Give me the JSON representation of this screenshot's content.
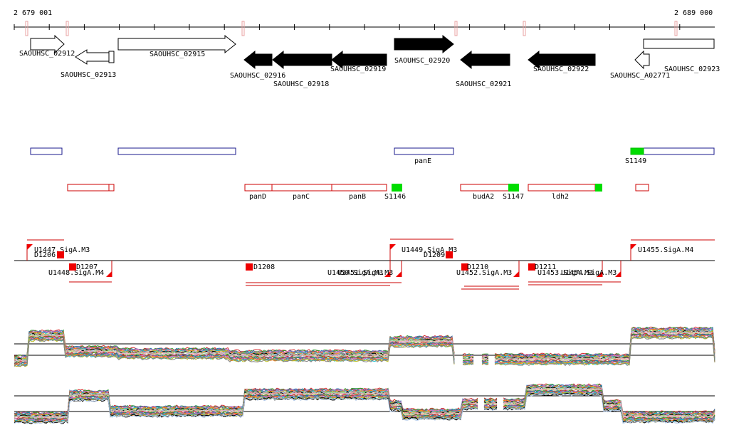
{
  "coords": {
    "start_label": "2 679 001",
    "end_label": "2 689 000"
  },
  "genes": [
    {
      "label": "SAOUHSC_02912",
      "filled": false,
      "dir": "+"
    },
    {
      "label": "SAOUHSC_02913",
      "filled": false,
      "dir": "-"
    },
    {
      "label": "SAOUHSC_02915",
      "filled": false,
      "dir": "+"
    },
    {
      "label": "SAOUHSC_02916",
      "filled": true,
      "dir": "-"
    },
    {
      "label": "SAOUHSC_02918",
      "filled": true,
      "dir": "-"
    },
    {
      "label": "SAOUHSC_02919",
      "filled": true,
      "dir": "-"
    },
    {
      "label": "SAOUHSC_02920",
      "filled": true,
      "dir": "+"
    },
    {
      "label": "SAOUHSC_02921",
      "filled": true,
      "dir": "-"
    },
    {
      "label": "SAOUHSC_02922",
      "filled": true,
      "dir": "-"
    },
    {
      "label": "SAOUHSC_A02771",
      "filled": false,
      "dir": "-"
    },
    {
      "label": "SAOUHSC_02923",
      "filled": false,
      "dir": "+"
    }
  ],
  "forward_features": [
    {
      "label": ""
    },
    {
      "label": ""
    },
    {
      "label": "panE"
    },
    {
      "label": ""
    }
  ],
  "forward_sites": [
    {
      "label": "S1149"
    }
  ],
  "reverse_features": [
    {
      "label": ""
    },
    {
      "label": ""
    },
    {
      "label": "panD"
    },
    {
      "label": "panC"
    },
    {
      "label": "panB"
    },
    {
      "label": "budA2"
    },
    {
      "label": "ldh2"
    },
    {
      "label": ""
    }
  ],
  "reverse_sites": [
    {
      "label": "S1146"
    },
    {
      "label": "S1147"
    },
    {
      "label": ""
    }
  ],
  "upper_promoters": [
    {
      "label": "U1447.SigA.M3"
    },
    {
      "label": "U1449.SigA.M3"
    },
    {
      "label": "U1455.SigA.M4"
    }
  ],
  "upper_d_markers": [
    {
      "label": "D1206"
    },
    {
      "label": "D1209"
    }
  ],
  "lower_promoters": [
    {
      "label": "U1448.SigA.M4"
    },
    {
      "label": "U1450.SigA.M3"
    },
    {
      "label": "U1451.SigA.M3"
    },
    {
      "label": "U1452.SigA.M3"
    },
    {
      "label": "U1453.SigA.M3"
    },
    {
      "label": "U1454.SigA.M3"
    }
  ],
  "lower_d_markers": [
    {
      "label": "D1207"
    },
    {
      "label": "D1208"
    },
    {
      "label": "D1210"
    },
    {
      "label": "D1211"
    }
  ],
  "colors": {
    "forward_outline": "#1a1a8c",
    "reverse_outline": "#cc0000",
    "site_green": "#00dd00",
    "marker_red": "#ee0000",
    "axis": "#000000",
    "tick_pink": "#e8a0a0"
  }
}
